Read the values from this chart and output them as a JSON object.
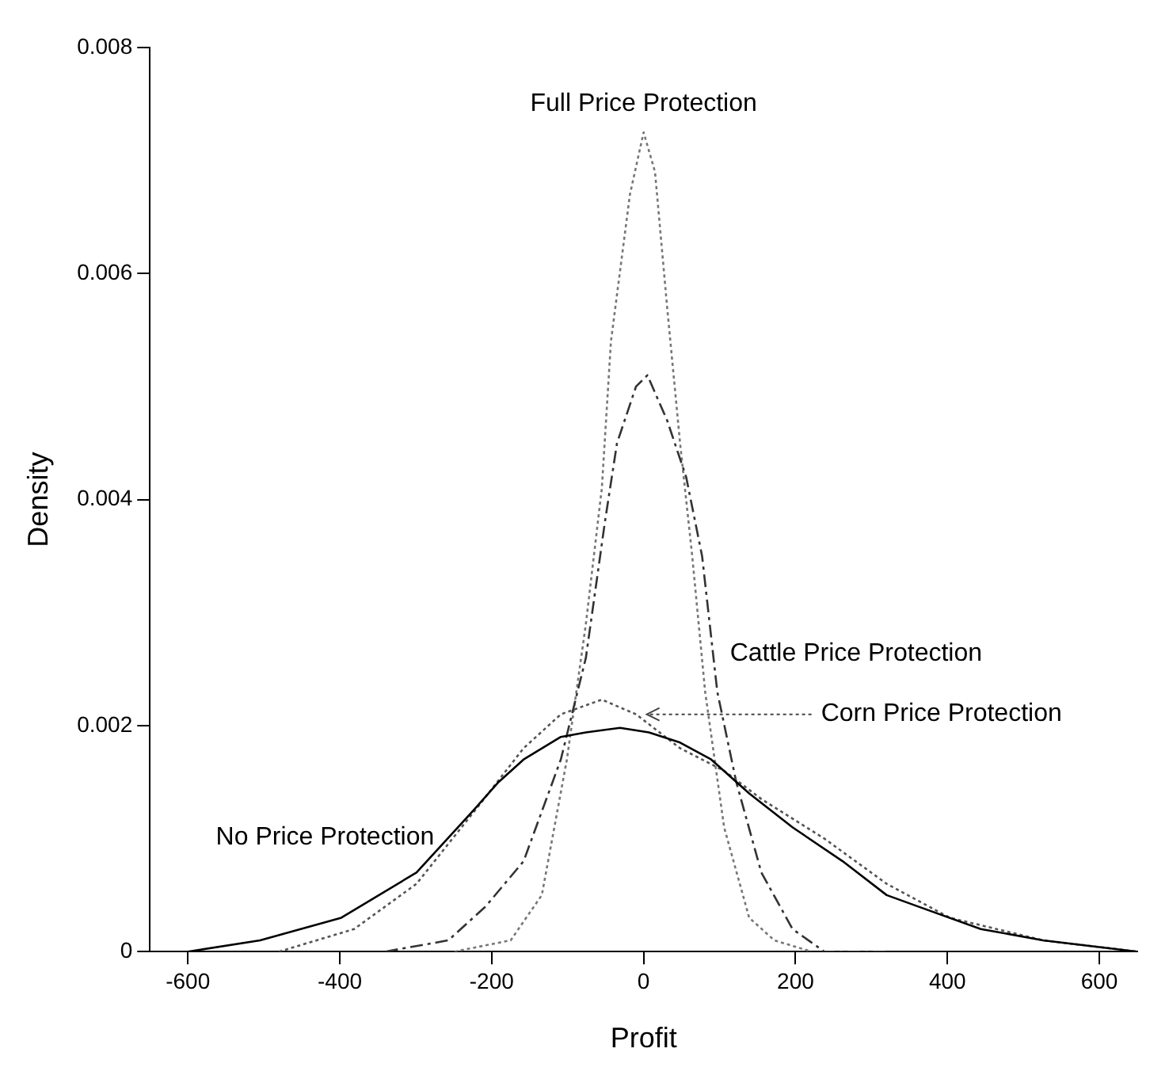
{
  "chart_data": {
    "type": "line",
    "xlabel": "Profit",
    "ylabel": "Density",
    "xlim": [
      -650,
      650
    ],
    "xticks": [
      -600,
      -400,
      -200,
      0,
      200,
      400,
      600
    ],
    "ylim": [
      0,
      0.008
    ],
    "yticks": [
      0,
      0.002,
      0.004,
      0.006,
      0.008
    ],
    "grid": false,
    "legend": false,
    "marker": "none",
    "series": [
      {
        "color": "#000000",
        "line_style": "solid",
        "x": [
          -600,
          -505,
          -398,
          -299,
          -224,
          -191,
          -158,
          -109,
          -76,
          -31,
          7,
          48,
          89,
          139,
          196,
          262,
          320,
          361,
          444,
          526,
          650
        ],
        "values": [
          0,
          0.0001,
          0.0003,
          0.0007,
          0.00125,
          0.0015,
          0.0017,
          0.0019,
          0.00194,
          0.00198,
          0.00194,
          0.00185,
          0.0017,
          0.0014,
          0.0011,
          0.0008,
          0.0005,
          0.0004,
          0.0002,
          0.0001,
          0
        ]
      },
      {
        "color": "#555555",
        "line_style": "dotted",
        "x": [
          -480,
          -381,
          -299,
          -216,
          -158,
          -109,
          -55,
          -10,
          48,
          106,
          155,
          238,
          320,
          403,
          526,
          650
        ],
        "values": [
          0,
          0.0002,
          0.0006,
          0.0013,
          0.0018,
          0.0021,
          0.00223,
          0.0021,
          0.0018,
          0.0016,
          0.00135,
          0.001,
          0.0006,
          0.0003,
          0.0001,
          0
        ]
      },
      {
        "color": "#333333",
        "line_style": "dashed",
        "x": [
          -340,
          -257,
          -208,
          -158,
          -109,
          -76,
          -51,
          -35,
          -10,
          5,
          31,
          56,
          77,
          97,
          122,
          155,
          196,
          238,
          320
        ],
        "values": [
          0,
          0.0001,
          0.0004,
          0.0008,
          0.0017,
          0.0026,
          0.0038,
          0.0045,
          0.005,
          0.0051,
          0.0047,
          0.0042,
          0.0035,
          0.0023,
          0.0015,
          0.0007,
          0.0002,
          0,
          0
        ]
      },
      {
        "color": "#777777",
        "line_style": "dotted",
        "x": [
          -249,
          -175,
          -134,
          -101,
          -76,
          -55,
          -43,
          -18,
          0,
          15,
          31,
          48,
          64,
          81,
          106,
          139,
          172,
          221
        ],
        "values": [
          0,
          0.0001,
          0.0005,
          0.0017,
          0.0029,
          0.0041,
          0.0054,
          0.0067,
          0.00725,
          0.0069,
          0.0057,
          0.0045,
          0.0035,
          0.0023,
          0.0011,
          0.0003,
          0.0001,
          0
        ]
      }
    ],
    "annotations": [
      {
        "text": "Full Price Protection",
        "x": 0,
        "y": 0.00725
      },
      {
        "text": "Cattle Price Protection",
        "x": 97,
        "y": 0.0023
      },
      {
        "text": "Corn Price Protection",
        "x": 0,
        "y": 0.0021
      },
      {
        "text": "No Price Protection",
        "x": -284,
        "y": 0.0009
      }
    ]
  }
}
